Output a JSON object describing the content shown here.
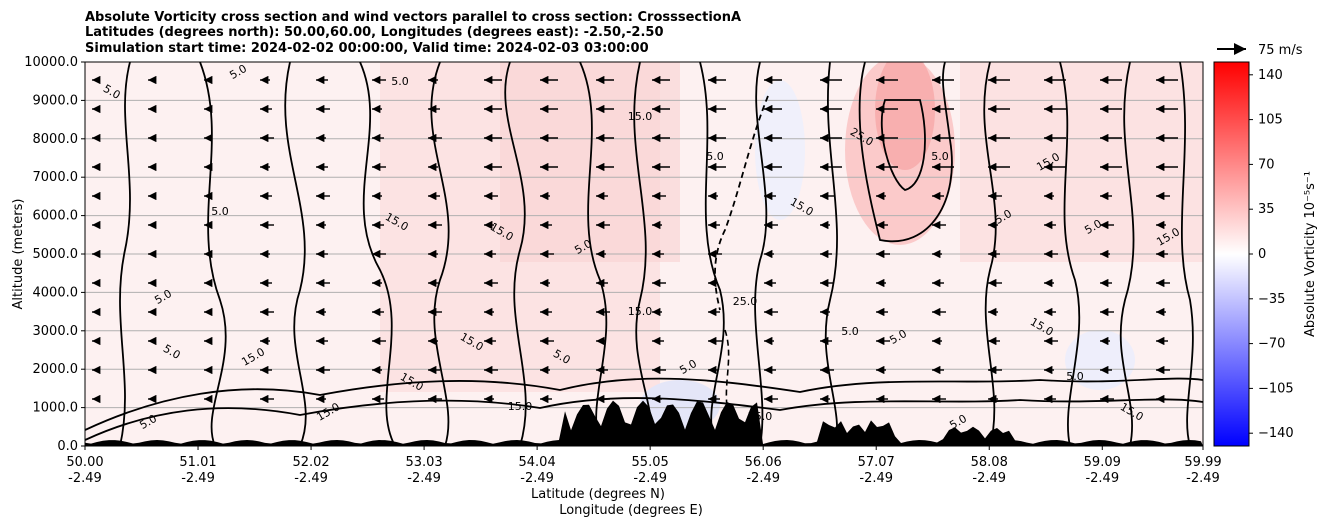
{
  "title_lines": [
    "Absolute Vorticity cross section and wind vectors parallel to cross section: CrosssectionA",
    "Latitudes (degrees north): 50.00,60.00, Longitudes (degrees east): -2.50,-2.50",
    "Simulation start time: 2024-02-02 00:00:00, Valid time: 2024-02-03 03:00:00"
  ],
  "quiver_key": "75 m/s",
  "chart_data": {
    "type": "heatmap",
    "xlabel_lat": "Latitude (degrees N)",
    "xlabel_lon": "Longitude (degrees E)",
    "ylabel": "Altitude (meters)",
    "colorbar_label": "Absolute Vorticity 10⁻⁵s⁻¹",
    "xlim": [
      50.0,
      59.99
    ],
    "ylim": [
      0,
      10000
    ],
    "x_ticks": [
      {
        "lat": "50.00",
        "lon": "-2.49"
      },
      {
        "lat": "51.01",
        "lon": "-2.49"
      },
      {
        "lat": "52.02",
        "lon": "-2.49"
      },
      {
        "lat": "53.03",
        "lon": "-2.49"
      },
      {
        "lat": "54.04",
        "lon": "-2.49"
      },
      {
        "lat": "55.05",
        "lon": "-2.49"
      },
      {
        "lat": "56.06",
        "lon": "-2.49"
      },
      {
        "lat": "57.07",
        "lon": "-2.49"
      },
      {
        "lat": "58.08",
        "lon": "-2.49"
      },
      {
        "lat": "59.09",
        "lon": "-2.49"
      },
      {
        "lat": "59.99",
        "lon": "-2.49"
      }
    ],
    "y_ticks": [
      "0.0",
      "1000.0",
      "2000.0",
      "3000.0",
      "4000.0",
      "5000.0",
      "6000.0",
      "7000.0",
      "8000.0",
      "9000.0",
      "10000.0"
    ],
    "colorbar_range": [
      -150,
      150
    ],
    "colorbar_ticks": [
      "140",
      "105",
      "70",
      "35",
      "0",
      "−35",
      "−70",
      "−105",
      "−140"
    ],
    "colorbar_values": [
      140,
      105,
      70,
      35,
      0,
      -35,
      -70,
      -105,
      -140
    ],
    "grid": "horizontal",
    "contour_levels": [
      "5.0",
      "15.0",
      "25.0"
    ],
    "colormap": {
      "low": "#0000ff",
      "mid": "#ffffff",
      "high": "#ff0000"
    },
    "wind_direction": "leftward (toward lower latitude)"
  }
}
